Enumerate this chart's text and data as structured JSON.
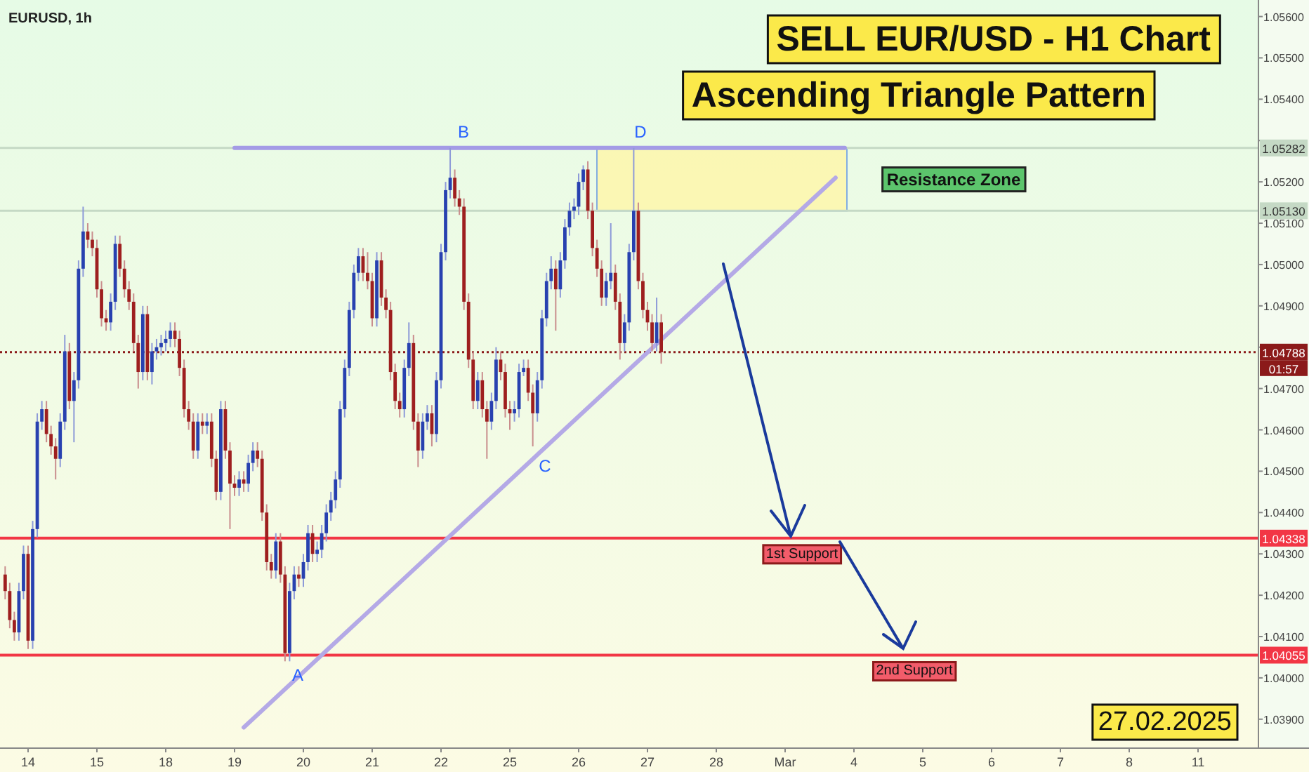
{
  "chart_data": {
    "type": "candlestick",
    "title": "SELL EUR/USD - H1 Chart",
    "subtitle": "Ascending Triangle Pattern",
    "categories": [
      null,
      null,
      null,
      null,
      null,
      "14",
      null,
      null,
      null,
      null,
      null,
      null,
      null,
      null,
      null,
      null,
      null,
      null,
      null,
      null,
      "15",
      null,
      null,
      null,
      null,
      null,
      null,
      null,
      null,
      null,
      null,
      null,
      null,
      null,
      null,
      "18",
      null,
      null,
      null,
      null,
      null,
      null,
      null,
      null,
      null,
      null,
      null,
      null,
      null,
      null,
      "19",
      null,
      null,
      null,
      null,
      null,
      null,
      null,
      null,
      null,
      null,
      null,
      null,
      null,
      null,
      "20",
      null,
      null,
      null,
      null,
      null,
      null,
      null,
      null,
      null,
      null,
      null,
      null,
      null,
      null,
      "21",
      null,
      null,
      null,
      null,
      null,
      null,
      null,
      null,
      null,
      null,
      null,
      null,
      null,
      null,
      "22",
      null,
      null,
      null,
      null,
      null,
      null,
      null,
      null,
      null,
      null,
      null,
      null,
      null,
      null,
      "25",
      null,
      null,
      null,
      null,
      null,
      null,
      null,
      null,
      null,
      null,
      null,
      null,
      null,
      null,
      "26",
      null,
      null,
      null,
      null,
      null,
      null,
      null,
      null,
      null,
      null,
      null,
      null,
      null,
      null,
      "27",
      null,
      null,
      null,
      null,
      null,
      null,
      null,
      null,
      null,
      null,
      null,
      null,
      null,
      null,
      "28",
      null,
      null,
      null,
      null,
      null,
      null,
      null,
      null,
      null,
      null,
      null,
      null,
      null,
      null,
      "Mar",
      null,
      null,
      null,
      null,
      null,
      null,
      null,
      null,
      null,
      null,
      null,
      null,
      null,
      null,
      "4",
      null,
      null,
      null,
      null,
      null,
      null,
      null,
      null,
      null,
      null,
      null,
      null,
      null,
      null,
      "5",
      null,
      null,
      null,
      null,
      null,
      null,
      null,
      null,
      null,
      null,
      null,
      null,
      null,
      null,
      "6",
      null,
      null,
      null,
      null,
      null,
      null,
      null,
      null,
      null,
      null,
      null,
      null,
      null,
      null,
      "7",
      null,
      null,
      null,
      null,
      null,
      null,
      null,
      null,
      null,
      null,
      null,
      null,
      null,
      null,
      "8",
      null,
      null,
      null,
      null,
      null,
      null,
      null,
      null,
      null,
      null,
      null,
      null,
      null,
      null,
      "11",
      null,
      null,
      null,
      null,
      null,
      null,
      null,
      null,
      null,
      null,
      null,
      null,
      null
    ],
    "ohlc": [
      [
        1.0425,
        1.0427,
        1.0419,
        1.0421
      ],
      [
        1.0421,
        1.0423,
        1.0412,
        1.0414
      ],
      [
        1.0414,
        1.0416,
        1.0409,
        1.0411
      ],
      [
        1.0411,
        1.0423,
        1.0409,
        1.0421
      ],
      [
        1.0421,
        1.0432,
        1.0419,
        1.043
      ],
      [
        1.043,
        1.0432,
        1.0407,
        1.0409
      ],
      [
        1.0409,
        1.0438,
        1.0407,
        1.0436
      ],
      [
        1.0436,
        1.0464,
        1.0434,
        1.0462
      ],
      [
        1.0462,
        1.0467,
        1.046,
        1.0465
      ],
      [
        1.0465,
        1.0467,
        1.0457,
        1.0459
      ],
      [
        1.0459,
        1.0461,
        1.0454,
        1.0456
      ],
      [
        1.0456,
        1.0458,
        1.0448,
        1.0453
      ],
      [
        1.0453,
        1.0464,
        1.0451,
        1.0462
      ],
      [
        1.0462,
        1.0483,
        1.046,
        1.0479
      ],
      [
        1.0479,
        1.0481,
        1.0465,
        1.0467
      ],
      [
        1.0467,
        1.0474,
        1.0457,
        1.0472
      ],
      [
        1.0472,
        1.0501,
        1.047,
        1.0499
      ],
      [
        1.0499,
        1.0514,
        1.0497,
        1.0508
      ],
      [
        1.0508,
        1.051,
        1.0504,
        1.0506
      ],
      [
        1.0506,
        1.0508,
        1.0502,
        1.0504
      ],
      [
        1.0504,
        1.0506,
        1.0492,
        1.0494
      ],
      [
        1.0494,
        1.0496,
        1.0485,
        1.0487
      ],
      [
        1.0487,
        1.0489,
        1.0484,
        1.0486
      ],
      [
        1.0486,
        1.0493,
        1.0484,
        1.0491
      ],
      [
        1.0491,
        1.0507,
        1.0489,
        1.0505
      ],
      [
        1.0505,
        1.0507,
        1.0497,
        1.0499
      ],
      [
        1.0499,
        1.0501,
        1.0492,
        1.0494
      ],
      [
        1.0494,
        1.0496,
        1.0489,
        1.0491
      ],
      [
        1.0491,
        1.0493,
        1.0479,
        1.0481
      ],
      [
        1.0481,
        1.0483,
        1.047,
        1.0474
      ],
      [
        1.0474,
        1.049,
        1.0472,
        1.0488
      ],
      [
        1.0488,
        1.049,
        1.0472,
        1.0474
      ],
      [
        1.0474,
        1.0481,
        1.0471,
        1.0479
      ],
      [
        1.0479,
        1.0482,
        1.0477,
        1.048
      ],
      [
        1.048,
        1.0483,
        1.0478,
        1.0481
      ],
      [
        1.0481,
        1.0484,
        1.0479,
        1.0482
      ],
      [
        1.0482,
        1.0486,
        1.048,
        1.0484
      ],
      [
        1.0484,
        1.0486,
        1.048,
        1.0482
      ],
      [
        1.0482,
        1.0484,
        1.0473,
        1.0475
      ],
      [
        1.0475,
        1.0477,
        1.0463,
        1.0465
      ],
      [
        1.0465,
        1.0467,
        1.046,
        1.0462
      ],
      [
        1.0462,
        1.0464,
        1.0453,
        1.0455
      ],
      [
        1.0455,
        1.0464,
        1.0453,
        1.0462
      ],
      [
        1.0462,
        1.0464,
        1.0459,
        1.0461
      ],
      [
        1.0461,
        1.0464,
        1.0459,
        1.0462
      ],
      [
        1.0462,
        1.0464,
        1.0451,
        1.0453
      ],
      [
        1.0453,
        1.0455,
        1.0443,
        1.0445
      ],
      [
        1.0445,
        1.0467,
        1.0443,
        1.0465
      ],
      [
        1.0465,
        1.0467,
        1.0453,
        1.0455
      ],
      [
        1.0455,
        1.0457,
        1.0436,
        1.0447
      ],
      [
        1.0447,
        1.0449,
        1.0444,
        1.0446
      ],
      [
        1.0446,
        1.045,
        1.0444,
        1.0448
      ],
      [
        1.0448,
        1.045,
        1.0445,
        1.0447
      ],
      [
        1.0447,
        1.0454,
        1.0445,
        1.0452
      ],
      [
        1.0452,
        1.0457,
        1.045,
        1.0455
      ],
      [
        1.0455,
        1.0457,
        1.0451,
        1.0453
      ],
      [
        1.0453,
        1.0455,
        1.0438,
        1.044
      ],
      [
        1.044,
        1.0442,
        1.0426,
        1.0428
      ],
      [
        1.0428,
        1.043,
        1.0424,
        1.0426
      ],
      [
        1.0426,
        1.0435,
        1.0424,
        1.0433
      ],
      [
        1.0433,
        1.0435,
        1.0423,
        1.0425
      ],
      [
        1.0425,
        1.0427,
        1.0404,
        1.0406
      ],
      [
        1.0406,
        1.0423,
        1.0404,
        1.0421
      ],
      [
        1.0421,
        1.0427,
        1.0419,
        1.0425
      ],
      [
        1.0425,
        1.0427,
        1.0422,
        1.0424
      ],
      [
        1.0424,
        1.043,
        1.0422,
        1.0428
      ],
      [
        1.0428,
        1.0437,
        1.0426,
        1.0435
      ],
      [
        1.0435,
        1.0437,
        1.0428,
        1.043
      ],
      [
        1.043,
        1.0433,
        1.0428,
        1.0431
      ],
      [
        1.0431,
        1.0437,
        1.0429,
        1.0435
      ],
      [
        1.0435,
        1.0442,
        1.0433,
        1.044
      ],
      [
        1.044,
        1.0445,
        1.0438,
        1.0443
      ],
      [
        1.0443,
        1.045,
        1.0441,
        1.0448
      ],
      [
        1.0448,
        1.0467,
        1.0446,
        1.0465
      ],
      [
        1.0465,
        1.0477,
        1.0463,
        1.0475
      ],
      [
        1.0475,
        1.0491,
        1.0473,
        1.0489
      ],
      [
        1.0489,
        1.05,
        1.0487,
        1.0498
      ],
      [
        1.0498,
        1.0504,
        1.0496,
        1.0502
      ],
      [
        1.0502,
        1.0504,
        1.0496,
        1.0498
      ],
      [
        1.0498,
        1.0503,
        1.0494,
        1.0496
      ],
      [
        1.0496,
        1.0498,
        1.0485,
        1.0487
      ],
      [
        1.0487,
        1.0503,
        1.0485,
        1.0501
      ],
      [
        1.0501,
        1.0503,
        1.049,
        1.0492
      ],
      [
        1.0492,
        1.0494,
        1.0487,
        1.0489
      ],
      [
        1.0489,
        1.0491,
        1.0472,
        1.0474
      ],
      [
        1.0474,
        1.0476,
        1.0465,
        1.0467
      ],
      [
        1.0467,
        1.0469,
        1.0463,
        1.0465
      ],
      [
        1.0465,
        1.0477,
        1.0463,
        1.0475
      ],
      [
        1.0475,
        1.0486,
        1.0473,
        1.0481
      ],
      [
        1.0481,
        1.0483,
        1.046,
        1.0462
      ],
      [
        1.0462,
        1.0464,
        1.0451,
        1.0455
      ],
      [
        1.0455,
        1.0464,
        1.0453,
        1.0462
      ],
      [
        1.0462,
        1.0466,
        1.046,
        1.0464
      ],
      [
        1.0464,
        1.0466,
        1.0456,
        1.0459
      ],
      [
        1.0459,
        1.0474,
        1.0457,
        1.0472
      ],
      [
        1.0472,
        1.0505,
        1.047,
        1.0503
      ],
      [
        1.0503,
        1.052,
        1.0501,
        1.0518
      ],
      [
        1.0518,
        1.05282,
        1.0516,
        1.0521
      ],
      [
        1.0521,
        1.0523,
        1.0514,
        1.0516
      ],
      [
        1.0516,
        1.0518,
        1.0512,
        1.0514
      ],
      [
        1.0514,
        1.0516,
        1.0489,
        1.0491
      ],
      [
        1.0491,
        1.0493,
        1.0475,
        1.0477
      ],
      [
        1.0477,
        1.0479,
        1.0465,
        1.0467
      ],
      [
        1.0467,
        1.0474,
        1.0465,
        1.0472
      ],
      [
        1.0472,
        1.0474,
        1.0463,
        1.0465
      ],
      [
        1.0465,
        1.0467,
        1.0453,
        1.0462
      ],
      [
        1.0462,
        1.0469,
        1.046,
        1.0467
      ],
      [
        1.0467,
        1.048,
        1.0465,
        1.0477
      ],
      [
        1.0477,
        1.0479,
        1.0472,
        1.0474
      ],
      [
        1.0474,
        1.0476,
        1.0463,
        1.0465
      ],
      [
        1.0465,
        1.0467,
        1.046,
        1.0464
      ],
      [
        1.0464,
        1.0467,
        1.0462,
        1.0465
      ],
      [
        1.0465,
        1.0476,
        1.0463,
        1.0474
      ],
      [
        1.0474,
        1.0477,
        1.0473,
        1.0475
      ],
      [
        1.0475,
        1.0477,
        1.0467,
        1.0469
      ],
      [
        1.0469,
        1.0471,
        1.0456,
        1.0464
      ],
      [
        1.0464,
        1.0474,
        1.0462,
        1.0472
      ],
      [
        1.0472,
        1.0489,
        1.047,
        1.0487
      ],
      [
        1.0487,
        1.0498,
        1.0485,
        1.0496
      ],
      [
        1.0496,
        1.0502,
        1.0494,
        1.0499
      ],
      [
        1.0499,
        1.0501,
        1.0484,
        1.0494
      ],
      [
        1.0494,
        1.0503,
        1.0492,
        1.0501
      ],
      [
        1.0501,
        1.0511,
        1.0499,
        1.0509
      ],
      [
        1.0509,
        1.0515,
        1.0507,
        1.0513
      ],
      [
        1.0513,
        1.0516,
        1.0511,
        1.0514
      ],
      [
        1.0514,
        1.0522,
        1.0512,
        1.052
      ],
      [
        1.052,
        1.0524,
        1.0518,
        1.0523
      ],
      [
        1.0523,
        1.0525,
        1.0511,
        1.0513
      ],
      [
        1.0513,
        1.0515,
        1.0502,
        1.0504
      ],
      [
        1.0504,
        1.0506,
        1.0497,
        1.0499
      ],
      [
        1.0499,
        1.0501,
        1.049,
        1.0492
      ],
      [
        1.0492,
        1.0498,
        1.049,
        1.0496
      ],
      [
        1.0496,
        1.051,
        1.0494,
        1.0498
      ],
      [
        1.0498,
        1.05,
        1.0489,
        1.0491
      ],
      [
        1.0491,
        1.0493,
        1.0477,
        1.0481
      ],
      [
        1.0481,
        1.0488,
        1.0479,
        1.0486
      ],
      [
        1.0486,
        1.0505,
        1.0484,
        1.0503
      ],
      [
        1.0503,
        1.05282,
        1.0501,
        1.0513
      ],
      [
        1.0513,
        1.0515,
        1.0494,
        1.0496
      ],
      [
        1.0496,
        1.0498,
        1.0487,
        1.0489
      ],
      [
        1.0489,
        1.0491,
        1.0484,
        1.0486
      ],
      [
        1.0486,
        1.0488,
        1.0479,
        1.0481
      ],
      [
        1.0481,
        1.0492,
        1.0479,
        1.0486
      ],
      [
        1.0486,
        1.0488,
        1.0476,
        1.04788
      ],
      null,
      null,
      null,
      null,
      null,
      null,
      null,
      null,
      null,
      null,
      null,
      null,
      null,
      null,
      null,
      null,
      null,
      null,
      null,
      null,
      null,
      null,
      null,
      null,
      null,
      null,
      null,
      null,
      null,
      null,
      null,
      null,
      null,
      null,
      null,
      null,
      null,
      null,
      null,
      null,
      null,
      null,
      null,
      null,
      null,
      null,
      null,
      null,
      null,
      null,
      null,
      null,
      null,
      null,
      null,
      null,
      null,
      null,
      null,
      null,
      null,
      null,
      null,
      null,
      null,
      null,
      null,
      null,
      null,
      null,
      null,
      null,
      null,
      null,
      null,
      null,
      null,
      null,
      null,
      null,
      null,
      null,
      null,
      null,
      null,
      null,
      null,
      null,
      null,
      null,
      null,
      null,
      null,
      null,
      null,
      null,
      null,
      null,
      null,
      null,
      null,
      null,
      null,
      null,
      null,
      null,
      null,
      null,
      null,
      null,
      null,
      null,
      null,
      null,
      null,
      null,
      null,
      null,
      null,
      null,
      null,
      null,
      null,
      null,
      null,
      null,
      null,
      null,
      null,
      null
    ],
    "ylim": [
      1.0383,
      1.0564
    ],
    "yticks": [
      {
        "value": 1.039,
        "label": "1.03900"
      },
      {
        "value": 1.04,
        "label": "1.04000"
      },
      {
        "value": 1.041,
        "label": "1.04100"
      },
      {
        "value": 1.042,
        "label": "1.04200"
      },
      {
        "value": 1.043,
        "label": "1.04300"
      },
      {
        "value": 1.044,
        "label": "1.04400"
      },
      {
        "value": 1.045,
        "label": "1.04500"
      },
      {
        "value": 1.046,
        "label": "1.04600"
      },
      {
        "value": 1.047,
        "label": "1.04700"
      },
      {
        "value": 1.048,
        "label": null
      },
      {
        "value": 1.049,
        "label": "1.04900"
      },
      {
        "value": 1.05,
        "label": "1.05000"
      },
      {
        "value": 1.051,
        "label": "1.05100"
      },
      {
        "value": 1.052,
        "label": "1.05200"
      },
      {
        "value": 1.053,
        "label": null
      },
      {
        "value": 1.054,
        "label": "1.05400"
      },
      {
        "value": 1.055,
        "label": "1.05500"
      },
      {
        "value": 1.056,
        "label": "1.05600"
      }
    ],
    "ref_lines": [
      {
        "axis": "y",
        "value": 1.05282,
        "color": "#c5d9c5"
      },
      {
        "axis": "y",
        "value": 1.0513,
        "color": "#c5d9c5"
      },
      {
        "axis": "y",
        "value": 1.04788,
        "color": "#8b1a1a",
        "line_style": "dotted"
      },
      {
        "axis": "y",
        "value": 1.04338,
        "label": "1st Support",
        "color": "#f23645"
      },
      {
        "axis": "y",
        "value": 1.04055,
        "label": "2nd Support",
        "color": "#f23645"
      }
    ],
    "bands": [
      {
        "axis": "y",
        "from": 1.0513,
        "to": 1.05282,
        "label": "Resistance Zone",
        "color": "#fff7a8"
      }
    ],
    "series": [
      {
        "type": "line",
        "color": "#b4a9e6",
        "values": [
          null,
          null,
          null,
          null,
          null,
          null,
          null,
          null,
          null,
          null,
          null,
          null,
          null,
          null,
          null,
          null,
          null,
          null,
          null,
          null,
          null,
          null,
          null,
          null,
          null,
          null,
          null,
          null,
          null,
          null,
          null,
          null,
          null,
          null,
          null,
          null,
          null,
          null,
          null,
          null,
          null,
          null,
          null,
          null,
          null,
          null,
          null,
          null,
          null,
          null,
          null,
          null,
          1.0388,
          null,
          null,
          null,
          null,
          null,
          null,
          null,
          null,
          null,
          null,
          null,
          null,
          null,
          null,
          null,
          null,
          null,
          null,
          null,
          null,
          null,
          null,
          null,
          null,
          null,
          null,
          null,
          null,
          null,
          null,
          null,
          null,
          null,
          null,
          null,
          null,
          null,
          null,
          null,
          null,
          null,
          null,
          null,
          null,
          null,
          null,
          null,
          null,
          null,
          null,
          null,
          null,
          null,
          null,
          null,
          null,
          null,
          null,
          null,
          null,
          null,
          null,
          null,
          null,
          null,
          null,
          null,
          null,
          null,
          null,
          null,
          null,
          null,
          null,
          null,
          null,
          null,
          null,
          null,
          null,
          null,
          null,
          null,
          null,
          null,
          null,
          null,
          null,
          null,
          null,
          null,
          null,
          null,
          null,
          null,
          null,
          null,
          null,
          null,
          null,
          null,
          null,
          null,
          null,
          null,
          null,
          null,
          null,
          null,
          null,
          null,
          null,
          null,
          null,
          null,
          null,
          null,
          null,
          null,
          null,
          null,
          null,
          null,
          null,
          null,
          null,
          null,
          null,
          1.0521,
          null,
          null,
          null,
          null,
          null,
          null,
          null,
          null,
          null,
          null,
          null,
          null,
          null,
          null,
          null,
          null,
          null,
          null,
          null,
          null,
          null,
          null,
          null,
          null,
          null,
          null,
          null,
          null,
          null,
          null,
          null,
          null,
          null,
          null,
          null,
          null,
          null,
          null,
          null,
          null,
          null,
          null,
          null,
          null,
          null,
          null,
          null,
          null,
          null,
          null,
          null,
          null,
          null,
          null,
          null,
          null,
          null,
          null,
          null,
          null,
          null,
          null,
          null,
          null,
          null,
          null,
          null,
          null,
          null,
          null,
          null,
          null,
          null,
          null,
          null,
          null,
          null,
          null,
          null,
          null,
          null,
          null,
          null,
          null,
          null,
          null,
          null,
          null,
          null,
          null,
          null,
          null
        ]
      },
      {
        "type": "line",
        "color": "#a49be6",
        "values": [
          null,
          null,
          null,
          null,
          null,
          null,
          null,
          null,
          null,
          null,
          null,
          null,
          null,
          null,
          null,
          null,
          null,
          null,
          null,
          null,
          null,
          null,
          null,
          null,
          null,
          null,
          null,
          null,
          null,
          null,
          null,
          null,
          null,
          null,
          null,
          null,
          null,
          null,
          null,
          null,
          null,
          null,
          null,
          null,
          null,
          null,
          null,
          null,
          null,
          null,
          1.05282,
          null,
          null,
          null,
          null,
          null,
          null,
          null,
          null,
          null,
          null,
          null,
          null,
          null,
          null,
          null,
          null,
          null,
          null,
          null,
          null,
          null,
          null,
          null,
          null,
          null,
          null,
          null,
          null,
          null,
          null,
          null,
          null,
          null,
          null,
          null,
          null,
          null,
          null,
          null,
          null,
          null,
          null,
          null,
          null,
          null,
          null,
          null,
          null,
          null,
          null,
          null,
          null,
          null,
          null,
          null,
          null,
          null,
          null,
          null,
          null,
          null,
          null,
          null,
          null,
          null,
          null,
          null,
          null,
          null,
          null,
          null,
          null,
          null,
          null,
          null,
          null,
          null,
          null,
          null,
          null,
          null,
          null,
          null,
          null,
          null,
          null,
          null,
          null,
          null,
          null,
          null,
          null,
          null,
          null,
          null,
          null,
          null,
          null,
          null,
          null,
          null,
          null,
          null,
          null,
          null,
          null,
          null,
          null,
          null,
          null,
          null,
          null,
          null,
          null,
          null,
          null,
          null,
          null,
          null,
          null,
          null,
          null,
          null,
          null,
          null,
          null,
          null,
          null,
          null,
          null,
          null,
          null,
          1.05282,
          null,
          null,
          null,
          null,
          null,
          null,
          null,
          null,
          null,
          null,
          null,
          null,
          null,
          null,
          null,
          null,
          null,
          null,
          null,
          null,
          null,
          null,
          null,
          null,
          null,
          null,
          null,
          null,
          null,
          null,
          null,
          null,
          null,
          null,
          null,
          null,
          null,
          null,
          null,
          null,
          null,
          null,
          null,
          null,
          null,
          null,
          null,
          null,
          null,
          null,
          null,
          null,
          null,
          null,
          null,
          null,
          null,
          null,
          null,
          null,
          null,
          null,
          null,
          null,
          null,
          null,
          null,
          null,
          null,
          null,
          null,
          null,
          null,
          null,
          null,
          null,
          null,
          null,
          null,
          null,
          null,
          null,
          null,
          null,
          null,
          null,
          null,
          null,
          null,
          null
        ]
      }
    ],
    "annotations": [
      "EURUSD, 1h",
      "27.02.2025",
      "01:57",
      "A",
      "B",
      "C",
      "D",
      {
        "text": "1.05282",
        "y": 1.05282
      },
      {
        "text": "1.05130",
        "y": 1.0513
      },
      {
        "text": "1.04788",
        "y": 1.04788
      },
      {
        "text": "1.04338",
        "y": 1.04338
      },
      {
        "text": "1.04055",
        "y": 1.04055
      }
    ]
  }
}
